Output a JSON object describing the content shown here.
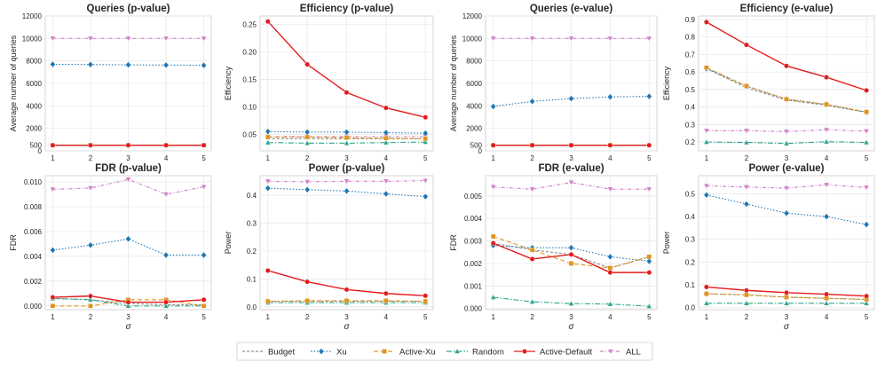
{
  "legend": {
    "entries": [
      {
        "key": "budget",
        "label": "Budget",
        "color": "#8c8c8c",
        "dash": "3,2",
        "marker": "none"
      },
      {
        "key": "xu",
        "label": "Xu",
        "color": "#1f77b4",
        "dash": "1.5,2",
        "marker": "diamond"
      },
      {
        "key": "active_xu",
        "label": "Active-Xu",
        "color": "#e0941c",
        "dash": "5,3",
        "marker": "square"
      },
      {
        "key": "random",
        "label": "Random",
        "color": "#2ca58d",
        "dash": "6,2,1.5,2",
        "marker": "triangle"
      },
      {
        "key": "active_default",
        "label": "Active-Default",
        "color": "#e31a1c",
        "dash": "",
        "marker": "circle"
      },
      {
        "key": "all",
        "label": "ALL",
        "color": "#d17fc9",
        "dash": "4,2,1,2",
        "marker": "triangle-down"
      }
    ]
  },
  "chart_data": [
    {
      "type": "line",
      "title": "Queries (p-value)",
      "xlabel": "",
      "ylabel": "Average number of queries",
      "x": [
        1,
        2,
        3,
        4,
        5
      ],
      "ylim": [
        0,
        12000
      ],
      "yticks": [
        0,
        500,
        2000,
        4000,
        6000,
        8000,
        10000,
        12000
      ],
      "ytick_labels": [
        "0",
        "500",
        "2000",
        "4000",
        "6000",
        "8000",
        "10000",
        "12000"
      ],
      "series": [
        {
          "key": "budget",
          "values": [
            500,
            500,
            500,
            500,
            500
          ]
        },
        {
          "key": "xu",
          "values": [
            7700,
            7680,
            7650,
            7630,
            7610
          ]
        },
        {
          "key": "active_xu",
          "values": [
            500,
            500,
            500,
            500,
            500
          ]
        },
        {
          "key": "random",
          "values": [
            500,
            500,
            500,
            500,
            500
          ]
        },
        {
          "key": "active_default",
          "values": [
            500,
            500,
            500,
            500,
            500
          ]
        },
        {
          "key": "all",
          "values": [
            10000,
            10000,
            10000,
            10000,
            10000
          ]
        }
      ]
    },
    {
      "type": "line",
      "title": "Efficiency (p-value)",
      "xlabel": "",
      "ylabel": "Efficiency",
      "x": [
        1,
        2,
        3,
        4,
        5
      ],
      "ylim": [
        0.02,
        0.265
      ],
      "yticks": [
        0.05,
        0.1,
        0.15,
        0.2,
        0.25
      ],
      "ytick_labels": [
        "0.05",
        "0.10",
        "0.15",
        "0.20",
        "0.25"
      ],
      "series": [
        {
          "key": "budget",
          "values": [
            0.042,
            0.042,
            0.042,
            0.042,
            0.042
          ]
        },
        {
          "key": "xu",
          "values": [
            0.055,
            0.054,
            0.054,
            0.053,
            0.052
          ]
        },
        {
          "key": "active_xu",
          "values": [
            0.045,
            0.045,
            0.044,
            0.043,
            0.042
          ]
        },
        {
          "key": "random",
          "values": [
            0.035,
            0.034,
            0.034,
            0.035,
            0.036
          ]
        },
        {
          "key": "active_default",
          "values": [
            0.255,
            0.177,
            0.126,
            0.098,
            0.081
          ]
        },
        {
          "key": "all",
          "values": [
            0.046,
            0.046,
            0.046,
            0.046,
            0.046
          ]
        }
      ]
    },
    {
      "type": "line",
      "title": "Queries (e-value)",
      "xlabel": "",
      "ylabel": "Average number of queries",
      "x": [
        1,
        2,
        3,
        4,
        5
      ],
      "ylim": [
        0,
        12000
      ],
      "yticks": [
        0,
        500,
        2000,
        4000,
        6000,
        8000,
        10000,
        12000
      ],
      "ytick_labels": [
        "0",
        "500",
        "2000",
        "4000",
        "6000",
        "8000",
        "10000",
        "12000"
      ],
      "series": [
        {
          "key": "budget",
          "values": [
            500,
            500,
            500,
            500,
            500
          ]
        },
        {
          "key": "xu",
          "values": [
            3950,
            4400,
            4650,
            4800,
            4850
          ]
        },
        {
          "key": "active_xu",
          "values": [
            500,
            500,
            500,
            500,
            500
          ]
        },
        {
          "key": "random",
          "values": [
            500,
            500,
            500,
            500,
            500
          ]
        },
        {
          "key": "active_default",
          "values": [
            500,
            500,
            500,
            500,
            500
          ]
        },
        {
          "key": "all",
          "values": [
            10000,
            10000,
            10000,
            10000,
            10000
          ]
        }
      ]
    },
    {
      "type": "line",
      "title": "Efficiency (e-value)",
      "xlabel": "",
      "ylabel": "Efficiency",
      "x": [
        1,
        2,
        3,
        4,
        5
      ],
      "ylim": [
        0.15,
        0.92
      ],
      "yticks": [
        0.2,
        0.3,
        0.4,
        0.5,
        0.6,
        0.7,
        0.8,
        0.9
      ],
      "ytick_labels": [
        "0.2",
        "0.3",
        "0.4",
        "0.5",
        "0.6",
        "0.7",
        "0.8",
        "0.9"
      ],
      "series": [
        {
          "key": "budget",
          "values": [
            0.62,
            0.51,
            0.44,
            0.41,
            0.37
          ]
        },
        {
          "key": "xu",
          "values": [
            0.62,
            0.52,
            0.445,
            0.415,
            0.37
          ]
        },
        {
          "key": "active_xu",
          "values": [
            0.625,
            0.52,
            0.445,
            0.415,
            0.372
          ]
        },
        {
          "key": "random",
          "values": [
            0.2,
            0.198,
            0.192,
            0.202,
            0.198
          ]
        },
        {
          "key": "active_default",
          "values": [
            0.885,
            0.755,
            0.635,
            0.57,
            0.495
          ]
        },
        {
          "key": "all",
          "values": [
            0.265,
            0.265,
            0.26,
            0.27,
            0.262
          ]
        }
      ]
    },
    {
      "type": "line",
      "title": "FDR (p-value)",
      "xlabel": "σ",
      "ylabel": "FDR",
      "x": [
        1,
        2,
        3,
        4,
        5
      ],
      "ylim": [
        -0.0003,
        0.0105
      ],
      "yticks": [
        0,
        0.002,
        0.004,
        0.006,
        0.008,
        0.01
      ],
      "ytick_labels": [
        "0.000",
        "0.002",
        "0.004",
        "0.006",
        "0.008",
        "0.010"
      ],
      "series": [
        {
          "key": "budget",
          "values": [
            0.0006,
            0.0005,
            0.0002,
            0.0001,
            0.0001
          ]
        },
        {
          "key": "xu",
          "values": [
            0.0045,
            0.0049,
            0.0054,
            0.0041,
            0.0041
          ]
        },
        {
          "key": "active_xu",
          "values": [
            0.0,
            0.0,
            0.0005,
            0.0005,
            0.0
          ]
        },
        {
          "key": "random",
          "values": [
            0.0006,
            0.0005,
            0.0,
            0.0,
            0.0
          ]
        },
        {
          "key": "active_default",
          "values": [
            0.0007,
            0.0008,
            0.0003,
            0.0003,
            0.0005
          ]
        },
        {
          "key": "all",
          "values": [
            0.0094,
            0.0095,
            0.0102,
            0.009,
            0.0096
          ]
        }
      ]
    },
    {
      "type": "line",
      "title": "Power (p-value)",
      "xlabel": "σ",
      "ylabel": "Power",
      "x": [
        1,
        2,
        3,
        4,
        5
      ],
      "ylim": [
        -0.01,
        0.47
      ],
      "yticks": [
        0.0,
        0.1,
        0.2,
        0.3,
        0.4
      ],
      "ytick_labels": [
        "0.0",
        "0.1",
        "0.2",
        "0.3",
        "0.4"
      ],
      "series": [
        {
          "key": "budget",
          "values": [
            0.02,
            0.02,
            0.02,
            0.02,
            0.02
          ]
        },
        {
          "key": "xu",
          "values": [
            0.425,
            0.42,
            0.415,
            0.405,
            0.395
          ]
        },
        {
          "key": "active_xu",
          "values": [
            0.02,
            0.022,
            0.022,
            0.022,
            0.02
          ]
        },
        {
          "key": "random",
          "values": [
            0.015,
            0.015,
            0.015,
            0.015,
            0.015
          ]
        },
        {
          "key": "active_default",
          "values": [
            0.13,
            0.09,
            0.062,
            0.048,
            0.04
          ]
        },
        {
          "key": "all",
          "values": [
            0.45,
            0.448,
            0.45,
            0.45,
            0.452
          ]
        }
      ]
    },
    {
      "type": "line",
      "title": "FDR (e-value)",
      "xlabel": "σ",
      "ylabel": "FDR",
      "x": [
        1,
        2,
        3,
        4,
        5
      ],
      "ylim": [
        -5e-05,
        0.0059
      ],
      "yticks": [
        0,
        0.001,
        0.002,
        0.003,
        0.004,
        0.005
      ],
      "ytick_labels": [
        "0.000",
        "0.001",
        "0.002",
        "0.003",
        "0.004",
        "0.005"
      ],
      "series": [
        {
          "key": "budget",
          "values": [
            0.0029,
            0.0026,
            0.0024,
            0.0018,
            0.0023
          ]
        },
        {
          "key": "xu",
          "values": [
            0.0028,
            0.0027,
            0.0027,
            0.0023,
            0.0021
          ]
        },
        {
          "key": "active_xu",
          "values": [
            0.0032,
            0.0026,
            0.002,
            0.0018,
            0.0023
          ]
        },
        {
          "key": "random",
          "values": [
            0.0005,
            0.0003,
            0.00022,
            0.0002,
            0.0001
          ]
        },
        {
          "key": "active_default",
          "values": [
            0.0029,
            0.0022,
            0.0024,
            0.0016,
            0.0016
          ]
        },
        {
          "key": "all",
          "values": [
            0.0054,
            0.0053,
            0.0056,
            0.0053,
            0.0053
          ]
        }
      ]
    },
    {
      "type": "line",
      "title": "Power (e-value)",
      "xlabel": "σ",
      "ylabel": "Power",
      "x": [
        1,
        2,
        3,
        4,
        5
      ],
      "ylim": [
        -0.01,
        0.58
      ],
      "yticks": [
        0.0,
        0.1,
        0.2,
        0.3,
        0.4,
        0.5
      ],
      "ytick_labels": [
        "0.0",
        "0.1",
        "0.2",
        "0.3",
        "0.4",
        "0.5"
      ],
      "series": [
        {
          "key": "budget",
          "values": [
            0.06,
            0.055,
            0.045,
            0.04,
            0.035
          ]
        },
        {
          "key": "xu",
          "values": [
            0.495,
            0.455,
            0.415,
            0.4,
            0.365
          ]
        },
        {
          "key": "active_xu",
          "values": [
            0.06,
            0.055,
            0.045,
            0.04,
            0.035
          ]
        },
        {
          "key": "random",
          "values": [
            0.018,
            0.018,
            0.018,
            0.018,
            0.018
          ]
        },
        {
          "key": "active_default",
          "values": [
            0.09,
            0.075,
            0.065,
            0.058,
            0.05
          ]
        },
        {
          "key": "all",
          "values": [
            0.535,
            0.53,
            0.525,
            0.54,
            0.528
          ]
        }
      ]
    }
  ]
}
